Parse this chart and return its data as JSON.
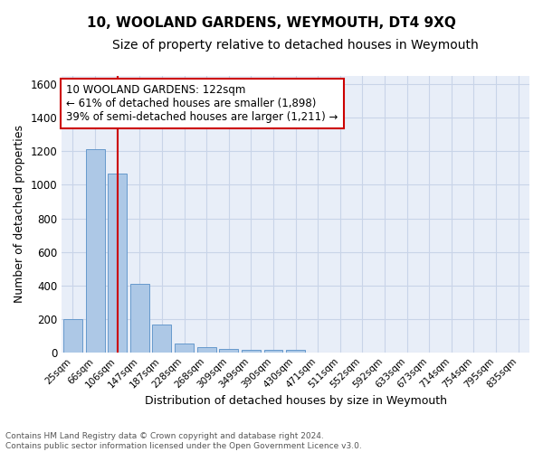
{
  "title": "10, WOOLAND GARDENS, WEYMOUTH, DT4 9XQ",
  "subtitle": "Size of property relative to detached houses in Weymouth",
  "xlabel": "Distribution of detached houses by size in Weymouth",
  "ylabel": "Number of detached properties",
  "categories": [
    "25sqm",
    "66sqm",
    "106sqm",
    "147sqm",
    "187sqm",
    "228sqm",
    "268sqm",
    "309sqm",
    "349sqm",
    "390sqm",
    "430sqm",
    "471sqm",
    "511sqm",
    "552sqm",
    "592sqm",
    "633sqm",
    "673sqm",
    "714sqm",
    "754sqm",
    "795sqm",
    "835sqm"
  ],
  "values": [
    200,
    1215,
    1065,
    410,
    165,
    50,
    30,
    22,
    15,
    15,
    15,
    0,
    0,
    0,
    0,
    0,
    0,
    0,
    0,
    0,
    0
  ],
  "bar_color": "#adc8e6",
  "bar_edge_color": "#6699cc",
  "vline_x": 2,
  "vline_color": "#cc0000",
  "annotation_text": "10 WOOLAND GARDENS: 122sqm\n← 61% of detached houses are smaller (1,898)\n39% of semi-detached houses are larger (1,211) →",
  "annotation_box_color": "#ffffff",
  "annotation_box_edge": "#cc0000",
  "ylim": [
    0,
    1650
  ],
  "yticks": [
    0,
    200,
    400,
    600,
    800,
    1000,
    1200,
    1400,
    1600
  ],
  "grid_color": "#c8d4e8",
  "background_color": "#e8eef8",
  "footer_text": "Contains HM Land Registry data © Crown copyright and database right 2024.\nContains public sector information licensed under the Open Government Licence v3.0.",
  "title_fontsize": 11,
  "subtitle_fontsize": 10,
  "xlabel_fontsize": 9,
  "ylabel_fontsize": 9,
  "annot_fontsize": 8.5
}
